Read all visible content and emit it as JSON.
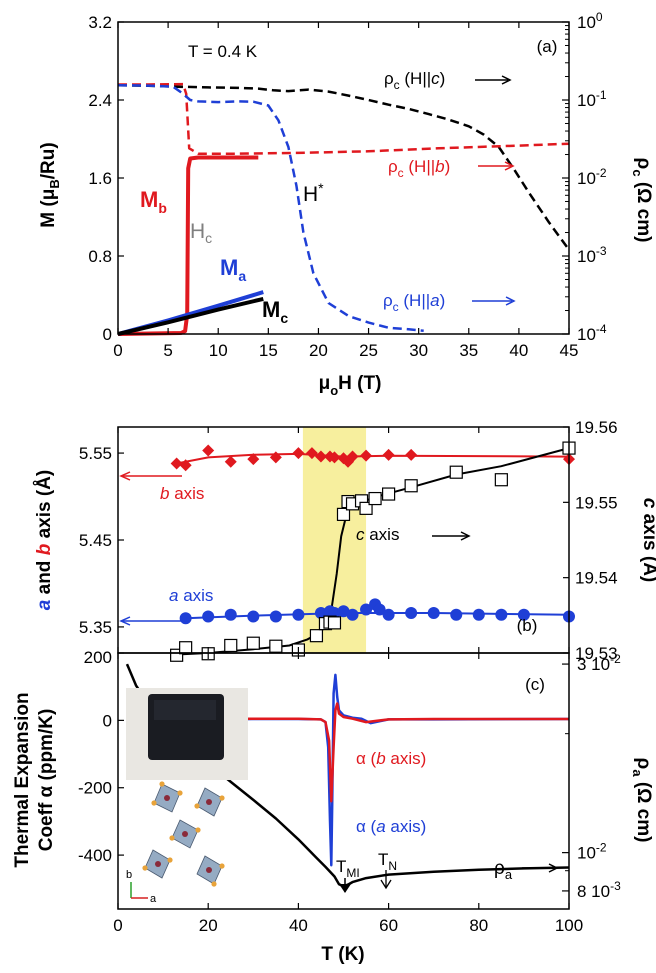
{
  "colors": {
    "black": "#000000",
    "red": "#e0191f",
    "blue": "#1f3fd6",
    "highlight": "#f7ef9e",
    "gray": "#808080",
    "sample": "#1a1c22",
    "crystal": "#8aa2bd",
    "atom": "#e8a33a"
  },
  "chart_data": [
    {
      "panel": "(a)",
      "type": "line",
      "annotation_T": "T = 0.4 K",
      "x_label_main": "μ",
      "x_label_sub": "o",
      "x_label_rest": "H (T)",
      "xlim": [
        0,
        45
      ],
      "x_ticks": [
        "0",
        "5",
        "10",
        "15",
        "20",
        "25",
        "30",
        "35",
        "40",
        "45"
      ],
      "y_left_label_pre": "M (μ",
      "y_left_label_sub": "B",
      "y_left_label_post": "/Ru)",
      "ylim_left": [
        0,
        3.2
      ],
      "y_left_ticks": [
        "0",
        "0.8",
        "1.6",
        "2.4",
        "3.2"
      ],
      "y_right_label_main": "ρ",
      "y_right_label_sub": "c",
      "y_right_label_rest": " (Ω cm)",
      "ylim_right_log": [
        0.0001,
        1
      ],
      "y_right_ticks": [
        {
          "base": "10",
          "exp": "0",
          "v": 1
        },
        {
          "base": "10",
          "exp": "-1",
          "v": 0.1
        },
        {
          "base": "10",
          "exp": "-2",
          "v": 0.01
        },
        {
          "base": "10",
          "exp": "-3",
          "v": 0.001
        },
        {
          "base": "10",
          "exp": "-4",
          "v": 0.0001
        }
      ],
      "series": [
        {
          "name": "M_b",
          "label_main": "M",
          "label_sub": "b",
          "axis": "left",
          "color": "#e0191f",
          "width": 4,
          "dash": "",
          "x": [
            0,
            6.3,
            6.7,
            6.9,
            7.0,
            7.2,
            8,
            10,
            14
          ],
          "y": [
            0,
            0.01,
            0.03,
            0.2,
            1.7,
            1.8,
            1.81,
            1.81,
            1.81
          ]
        },
        {
          "name": "M_a",
          "label_main": "M",
          "label_sub": "a",
          "axis": "left",
          "color": "#1f3fd6",
          "width": 4,
          "dash": "",
          "x": [
            0,
            5,
            10,
            14.5
          ],
          "y": [
            0,
            0.14,
            0.29,
            0.43
          ]
        },
        {
          "name": "M_c",
          "label_main": "M",
          "label_sub": "c",
          "axis": "left",
          "color": "#000000",
          "width": 4,
          "dash": "",
          "x": [
            0,
            5,
            10,
            14.5
          ],
          "y": [
            0,
            0.12,
            0.25,
            0.36
          ]
        },
        {
          "name": "ρc (H||c)",
          "axis": "right",
          "color": "#000000",
          "width": 2.5,
          "dash": "9,5",
          "x": [
            0,
            3,
            6,
            9,
            12,
            14,
            15.5,
            17,
            19,
            21,
            23,
            25,
            27,
            29,
            31,
            33,
            35,
            36.5,
            38,
            39.5,
            41,
            43,
            45
          ],
          "y": [
            0.155,
            0.152,
            0.148,
            0.145,
            0.143,
            0.14,
            0.133,
            0.13,
            0.136,
            0.128,
            0.114,
            0.1,
            0.087,
            0.077,
            0.066,
            0.056,
            0.046,
            0.036,
            0.025,
            0.013,
            0.0065,
            0.0027,
            0.0012
          ]
        },
        {
          "name": "ρc (H||b)",
          "axis": "right",
          "color": "#e0191f",
          "width": 2.5,
          "dash": "9,5",
          "x": [
            0,
            3,
            6.5,
            6.8,
            7.1,
            8,
            12,
            18,
            25,
            32,
            40,
            45
          ],
          "y": [
            0.158,
            0.158,
            0.16,
            0.12,
            0.024,
            0.0205,
            0.0205,
            0.021,
            0.022,
            0.024,
            0.026,
            0.0275
          ]
        },
        {
          "name": "ρc (H||a)",
          "axis": "right",
          "color": "#1f3fd6",
          "width": 2.5,
          "dash": "9,5",
          "x": [
            0,
            3,
            5.5,
            6.5,
            7.2,
            8,
            10,
            12,
            13.5,
            15,
            16,
            17,
            17.8,
            18.5,
            19.5,
            21,
            23,
            25,
            27,
            29,
            30.5
          ],
          "y": [
            0.155,
            0.153,
            0.148,
            0.12,
            0.1,
            0.096,
            0.094,
            0.096,
            0.095,
            0.085,
            0.055,
            0.025,
            0.008,
            0.002,
            0.0006,
            0.00025,
            0.00017,
            0.00014,
            0.00012,
            0.000115,
            0.00011
          ]
        }
      ],
      "labels": {
        "rc_main": "ρ",
        "rc_sub": "c",
        "hc_open": " (H||",
        "hc_c": "c",
        "hc_close": ")",
        "hc_b": "b",
        "hc_a": "a",
        "hc_field_main": "H",
        "hc_field_sub": "c",
        "hstar_main": "H",
        "hstar_sup": "*"
      }
    },
    {
      "panel": "(b)",
      "type": "scatter",
      "xlim": [
        0,
        100
      ],
      "y_left_label_a": "a",
      "y_left_label_and": " and ",
      "y_left_label_b": "b",
      "y_left_label_rest": " axis (Å)",
      "ylim_left": [
        5.32,
        5.58
      ],
      "y_left_ticks": [
        "5.35",
        "5.45",
        "5.55"
      ],
      "y_right_label_c": "c",
      "y_right_label_rest": " axis (Å)",
      "ylim_right": [
        19.53,
        19.56
      ],
      "y_right_ticks": [
        "19.53",
        "19.54",
        "19.55",
        "19.56"
      ],
      "highlight_range": [
        41,
        55
      ],
      "series": [
        {
          "name": "b axis",
          "label_letter": "b",
          "label_rest": " axis",
          "axis": "left",
          "marker": "diamond",
          "color": "#e0191f",
          "x": [
            13,
            15,
            20,
            25,
            30,
            35,
            40,
            43,
            45,
            47,
            48,
            50,
            51,
            52,
            55,
            60,
            65,
            100
          ],
          "y": [
            5.538,
            5.536,
            5.553,
            5.54,
            5.543,
            5.545,
            5.55,
            5.55,
            5.546,
            5.546,
            5.545,
            5.544,
            5.54,
            5.546,
            5.547,
            5.548,
            5.548,
            5.543
          ]
        },
        {
          "name": "a axis",
          "label_letter": "a",
          "label_rest": " axis",
          "axis": "left",
          "marker": "circle",
          "color": "#1f3fd6",
          "x": [
            15,
            20,
            25,
            30,
            35,
            40,
            45,
            47,
            48,
            50,
            52,
            55,
            57,
            58,
            60,
            65,
            70,
            75,
            80,
            85,
            90,
            100
          ],
          "y": [
            5.36,
            5.362,
            5.364,
            5.362,
            5.362,
            5.364,
            5.366,
            5.368,
            5.366,
            5.368,
            5.364,
            5.37,
            5.376,
            5.37,
            5.364,
            5.366,
            5.366,
            5.364,
            5.364,
            5.364,
            5.364,
            5.362
          ]
        },
        {
          "name": "c axis",
          "label_letter": "c",
          "label_rest": " axis",
          "axis": "right",
          "marker": "open-square",
          "color": "#000000",
          "x": [
            13,
            15,
            20,
            25,
            30,
            35,
            40,
            44,
            46,
            47,
            48,
            50,
            51,
            52,
            54,
            55,
            57,
            60,
            65,
            75,
            85,
            100
          ],
          "y": [
            19.5297,
            19.5307,
            19.5299,
            19.531,
            19.5313,
            19.5309,
            19.5304,
            19.5323,
            19.5339,
            19.5341,
            19.534,
            19.5484,
            19.5501,
            19.5498,
            19.5502,
            19.5492,
            19.5505,
            19.5511,
            19.5522,
            19.554,
            19.553,
            19.5572
          ]
        }
      ],
      "fit_lines": [
        {
          "axis": "left",
          "color": "#e0191f",
          "x": [
            13,
            20,
            30,
            40,
            50,
            60,
            100
          ],
          "y": [
            5.538,
            5.545,
            5.548,
            5.549,
            5.546,
            5.547,
            5.546
          ]
        },
        {
          "axis": "left",
          "color": "#1f3fd6",
          "x": [
            15,
            30,
            50,
            70,
            100
          ],
          "y": [
            5.36,
            5.363,
            5.366,
            5.366,
            5.364
          ]
        },
        {
          "axis": "right",
          "color": "#000000",
          "x": [
            13,
            20,
            30,
            38,
            42,
            45,
            47,
            48.5,
            49.5,
            51,
            53,
            57,
            65,
            75,
            85,
            100
          ],
          "y": [
            19.5298,
            19.53,
            19.5305,
            19.531,
            19.5318,
            19.5328,
            19.5345,
            19.5405,
            19.5455,
            19.5492,
            19.5498,
            19.5507,
            19.552,
            19.5537,
            19.5548,
            19.5572
          ]
        }
      ]
    },
    {
      "panel": "(c)",
      "type": "line",
      "x_label": "T (K)",
      "xlim": [
        0,
        100
      ],
      "x_ticks": [
        "0",
        "20",
        "40",
        "60",
        "80",
        "100"
      ],
      "y_left_label_line1": "Thermal Expansion",
      "y_left_label_line2": "Coeff α (ppm/K)",
      "ylim_left": [
        -560,
        200
      ],
      "y_left_ticks": [
        "200",
        "0",
        "-200",
        "-400"
      ],
      "y_right_label_main": "ρ",
      "y_right_label_sub": "a",
      "y_right_label_rest": " (Ω cm)",
      "ylim_right_log": [
        0.0072,
        0.032
      ],
      "y_right_ticks": [
        {
          "label": "3 10",
          "exp": "-2",
          "v": 0.03
        },
        {
          "label": "10",
          "exp": "-2",
          "v": 0.01
        },
        {
          "label": "8 10",
          "exp": "-3",
          "v": 0.008
        }
      ],
      "series": [
        {
          "name": "ρa",
          "label_main": "ρ",
          "label_sub": "a",
          "axis": "right",
          "color": "#000000",
          "width": 2.5,
          "x": [
            2,
            4,
            7,
            10,
            15,
            20,
            25,
            30,
            35,
            40,
            44,
            46,
            48,
            49,
            50,
            51,
            52,
            55,
            60,
            70,
            80,
            90,
            100
          ],
          "y": [
            0.03,
            0.0265,
            0.0235,
            0.0215,
            0.0189,
            0.0168,
            0.0151,
            0.0136,
            0.0122,
            0.0108,
            0.0097,
            0.0092,
            0.0087,
            0.00832,
            0.00822,
            0.0083,
            0.00842,
            0.00862,
            0.0088,
            0.00895,
            0.00905,
            0.00912,
            0.00917
          ]
        },
        {
          "name": "α (a axis)",
          "label_letter": "a",
          "axis": "left",
          "color": "#1f3fd6",
          "width": 2.5,
          "x": [
            10,
            20,
            30,
            40,
            45,
            46,
            46.6,
            47.0,
            47.3,
            47.5,
            47.8,
            48.2,
            48.6,
            49,
            50,
            52,
            54,
            56,
            60,
            70,
            100
          ],
          "y": [
            3,
            3,
            4,
            4,
            3,
            -5,
            -80,
            -300,
            -430,
            -250,
            80,
            135,
            70,
            30,
            15,
            8,
            5,
            -8,
            3,
            3,
            4
          ]
        },
        {
          "name": "α (b axis)",
          "label_letter": "b",
          "axis": "left",
          "color": "#e0191f",
          "width": 2.5,
          "x": [
            10,
            20,
            30,
            40,
            45,
            46,
            46.8,
            47.3,
            47.8,
            48.2,
            48.6,
            49,
            50,
            52,
            55,
            60,
            70,
            100
          ],
          "y": [
            4,
            4,
            5,
            5,
            3,
            -5,
            -60,
            -240,
            -80,
            30,
            50,
            20,
            10,
            5,
            -5,
            3,
            4,
            4
          ]
        }
      ],
      "labels": {
        "alpha": "α",
        "open": " (",
        "close": " axis)",
        "tmi_main": "T",
        "tmi_sub": "MI",
        "tn_main": "T",
        "tn_sub": "N",
        "inset_a": "a",
        "inset_b": "b"
      }
    }
  ]
}
